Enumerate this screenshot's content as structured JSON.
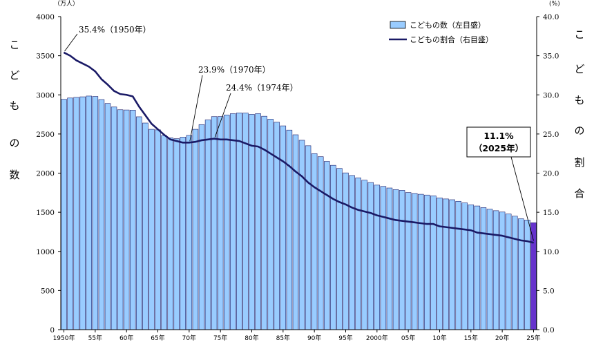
{
  "chart_data": {
    "type": "bar",
    "title": "",
    "y_left_unit": "（万人）",
    "y_right_unit": "(%)",
    "y_left_label": [
      "こ",
      "ど",
      "も",
      "の",
      "数"
    ],
    "y_right_label": [
      "こ",
      "ど",
      "も",
      "の",
      "割",
      "合"
    ],
    "y_left_ticks": [
      "0",
      "500",
      "1000",
      "1500",
      "2000",
      "2500",
      "3000",
      "3500",
      "4000"
    ],
    "y_right_ticks": [
      "0.0",
      "5.0",
      "10.0",
      "15.0",
      "20.0",
      "25.0",
      "30.0",
      "35.0",
      "40.0"
    ],
    "ylim_left": [
      0,
      4000
    ],
    "ylim_right": [
      0,
      40
    ],
    "x_tick_labels": [
      "1950年",
      "55年",
      "60年",
      "65年",
      "70年",
      "75年",
      "80年",
      "85年",
      "90年",
      "95年",
      "2000年",
      "05年",
      "10年",
      "15年",
      "20年",
      "25年"
    ],
    "years": [
      1950,
      1951,
      1952,
      1953,
      1954,
      1955,
      1956,
      1957,
      1958,
      1959,
      1960,
      1961,
      1962,
      1963,
      1964,
      1965,
      1966,
      1967,
      1968,
      1969,
      1970,
      1971,
      1972,
      1973,
      1974,
      1975,
      1976,
      1977,
      1978,
      1979,
      1980,
      1981,
      1982,
      1983,
      1984,
      1985,
      1986,
      1987,
      1988,
      1989,
      1990,
      1991,
      1992,
      1993,
      1994,
      1995,
      1996,
      1997,
      1998,
      1999,
      2000,
      2001,
      2002,
      2003,
      2004,
      2005,
      2006,
      2007,
      2008,
      2009,
      2010,
      2011,
      2012,
      2013,
      2014,
      2015,
      2016,
      2017,
      2018,
      2019,
      2020,
      2021,
      2022,
      2023,
      2024,
      2025
    ],
    "series": [
      {
        "name": "こどもの数（左目盛）",
        "axis": "left",
        "color": "#99ccff",
        "highlight_color": "#6633cc",
        "values": [
          2943,
          2960,
          2968,
          2975,
          2985,
          2980,
          2940,
          2890,
          2845,
          2810,
          2807,
          2805,
          2720,
          2640,
          2560,
          2553,
          2480,
          2450,
          2440,
          2460,
          2482,
          2560,
          2620,
          2680,
          2722,
          2723,
          2743,
          2760,
          2770,
          2768,
          2751,
          2760,
          2727,
          2690,
          2650,
          2604,
          2550,
          2490,
          2420,
          2350,
          2249,
          2210,
          2150,
          2100,
          2060,
          2003,
          1970,
          1940,
          1910,
          1880,
          1847,
          1830,
          1810,
          1790,
          1780,
          1752,
          1740,
          1730,
          1720,
          1710,
          1684,
          1670,
          1660,
          1640,
          1620,
          1595,
          1580,
          1560,
          1540,
          1520,
          1503,
          1478,
          1450,
          1417,
          1401,
          1366
        ]
      },
      {
        "name": "こどもの割合（右目盛）",
        "axis": "right",
        "color": "#1a1a66",
        "values": [
          35.4,
          35.0,
          34.4,
          34.0,
          33.6,
          33.0,
          32.0,
          31.3,
          30.5,
          30.1,
          30.0,
          29.8,
          28.5,
          27.4,
          26.3,
          25.6,
          24.9,
          24.3,
          24.1,
          23.9,
          23.9,
          24.0,
          24.2,
          24.3,
          24.4,
          24.3,
          24.3,
          24.2,
          24.1,
          23.8,
          23.5,
          23.4,
          23.0,
          22.5,
          22.0,
          21.5,
          20.9,
          20.2,
          19.6,
          18.8,
          18.2,
          17.7,
          17.2,
          16.7,
          16.3,
          16.0,
          15.6,
          15.3,
          15.1,
          14.9,
          14.6,
          14.4,
          14.2,
          14.0,
          13.9,
          13.8,
          13.7,
          13.6,
          13.5,
          13.5,
          13.2,
          13.1,
          13.0,
          12.9,
          12.8,
          12.7,
          12.4,
          12.3,
          12.2,
          12.1,
          12.0,
          11.8,
          11.6,
          11.4,
          11.3,
          11.1
        ]
      }
    ],
    "annotations": [
      {
        "text": "35.4%（1950年）",
        "year": 1950,
        "value": 35.4
      },
      {
        "text": "23.9%（1970年）",
        "year": 1970,
        "value": 23.9
      },
      {
        "text": "24.4%（1974年）",
        "year": 1974,
        "value": 24.4
      },
      {
        "text_line1": "11.1%",
        "text_line2": "（2025年）",
        "year": 2025,
        "value": 11.1
      }
    ],
    "legend": {
      "position": "top-right",
      "items": [
        "こどもの数（左目盛）",
        "こどもの割合（右目盛）"
      ]
    }
  }
}
